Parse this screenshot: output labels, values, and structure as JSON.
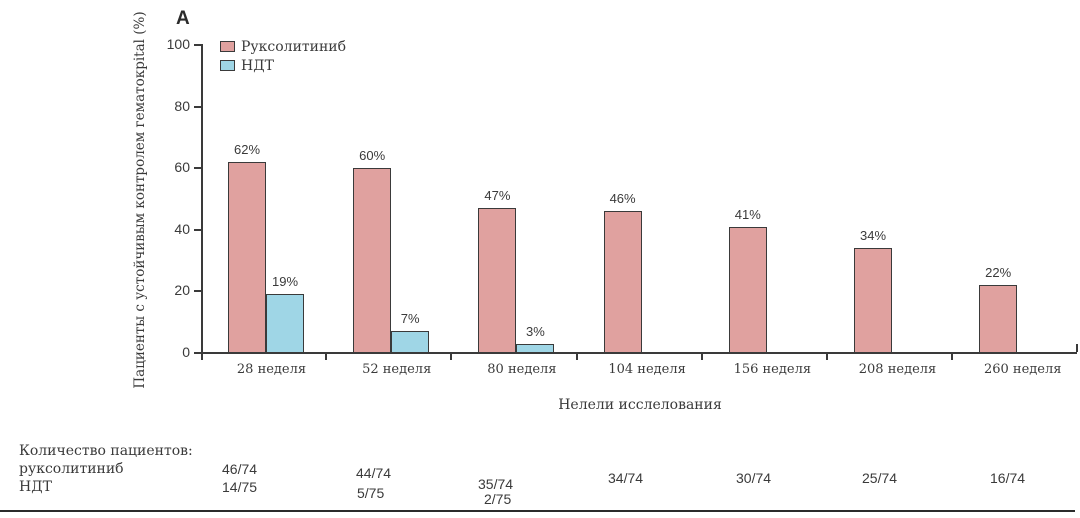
{
  "panel_label": "A",
  "chart_data": {
    "type": "bar",
    "title": "",
    "xlabel": "Нелели исслелования",
    "ylabel": "Пациенты с устойчивым контролем гематокрital (%)",
    "ylim": [
      0,
      100
    ],
    "yticks": [
      0,
      20,
      40,
      60,
      80,
      100
    ],
    "grid": false,
    "legend_position": "top-left",
    "categories": [
      "28 неделя",
      "52 неделя",
      "80 неделя",
      "104 неделя",
      "156 неделя",
      "208 неделя",
      "260 неделя"
    ],
    "series": [
      {
        "name": "Руксолитиниб",
        "color": "#e0a19f",
        "values": [
          62,
          60,
          47,
          46,
          41,
          34,
          22
        ],
        "labels": [
          "62%",
          "60%",
          "47%",
          "46%",
          "41%",
          "34%",
          "22%"
        ]
      },
      {
        "name": "НДТ",
        "color": "#9fd6e6",
        "values": [
          19,
          7,
          3,
          null,
          null,
          null,
          null
        ],
        "labels": [
          "19%",
          "7%",
          "3%",
          "",
          "",
          "",
          ""
        ]
      }
    ]
  },
  "legend": {
    "items": [
      {
        "label": "Руксолитиниб",
        "color": "#e0a19f"
      },
      {
        "label": "НДТ",
        "color": "#9fd6e6"
      }
    ]
  },
  "patient_counts": {
    "title": "Количество пациентов:",
    "rows": [
      {
        "label": "руксолитиниб",
        "values": [
          "46/74",
          "44/74",
          "35/74",
          "34/74",
          "30/74",
          "25/74",
          "16/74"
        ]
      },
      {
        "label": "НДТ",
        "values": [
          "14/75",
          "5/75",
          "2/75"
        ]
      }
    ]
  }
}
